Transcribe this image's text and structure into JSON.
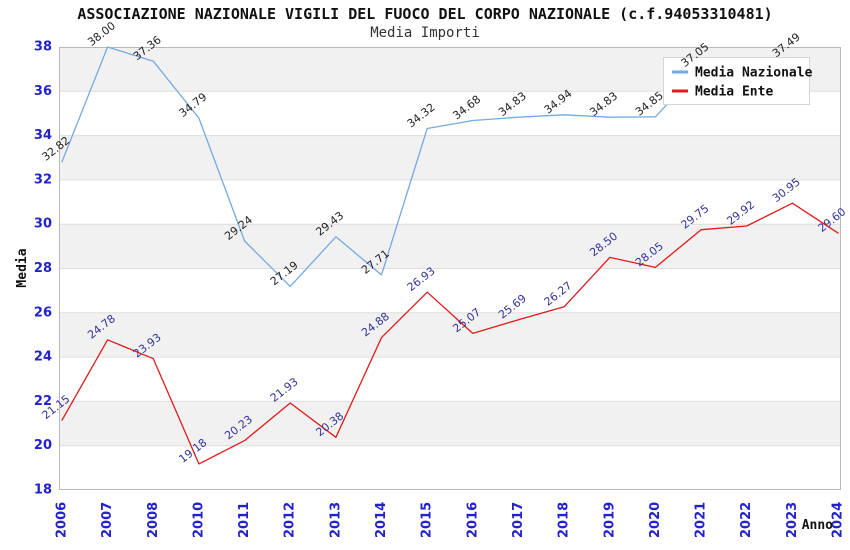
{
  "chart_data": {
    "type": "line",
    "title": "ASSOCIAZIONE NAZIONALE VIGILI DEL FUOCO DEL CORPO NAZIONALE (c.f.94053310481)",
    "subtitle": "Media Importi",
    "categories": [
      "2006",
      "2007",
      "2008",
      "2010",
      "2011",
      "2012",
      "2013",
      "2014",
      "2015",
      "2016",
      "2017",
      "2018",
      "2019",
      "2020",
      "2021",
      "2022",
      "2023",
      "2024"
    ],
    "series": [
      {
        "name": "Media Nazionale",
        "color": "#74aae4",
        "label_color": "#222222",
        "values": [
          32.82,
          38.0,
          37.36,
          34.79,
          29.24,
          27.19,
          29.43,
          27.71,
          34.32,
          34.68,
          34.83,
          34.94,
          34.83,
          34.85,
          37.05,
          37.2,
          37.49,
          null
        ],
        "labels": [
          "32.82",
          "38.00",
          "37.36",
          "34.79",
          "29.24",
          "27.19",
          "29.43",
          "27.71",
          "34.32",
          "34.68",
          "34.83",
          "34.94",
          "34.83",
          "34.85",
          "37.05",
          "",
          "37.49",
          ""
        ]
      },
      {
        "name": "Media Ente",
        "color": "#e01a1a",
        "label_color": "#333399",
        "values": [
          21.15,
          24.78,
          23.93,
          19.18,
          20.23,
          21.93,
          20.38,
          24.88,
          26.93,
          25.07,
          25.69,
          26.27,
          28.5,
          28.05,
          29.75,
          29.92,
          30.95,
          29.6
        ],
        "labels": [
          "21.15",
          "24.78",
          "23.93",
          "19.18",
          "20.23",
          "21.93",
          "20.38",
          "24.88",
          "26.93",
          "25.07",
          "25.69",
          "26.27",
          "28.50",
          "28.05",
          "29.75",
          "29.92",
          "30.95",
          "29.60"
        ]
      }
    ],
    "xlabel": "Anno",
    "ylabel": "Media",
    "ylim": [
      18,
      38
    ],
    "ytick_step": 2,
    "legend": {
      "position": "top-right",
      "entries": [
        "Media Nazionale",
        "Media Ente"
      ]
    },
    "styles": {
      "band_color": "#f1f1f1",
      "grid_color": "#dedede",
      "border_color": "#b8b8b8",
      "tick_label_color": "#2222cc",
      "legend_border_color": "#d6d6d6",
      "legend_bg_color": "#ffffff"
    }
  }
}
